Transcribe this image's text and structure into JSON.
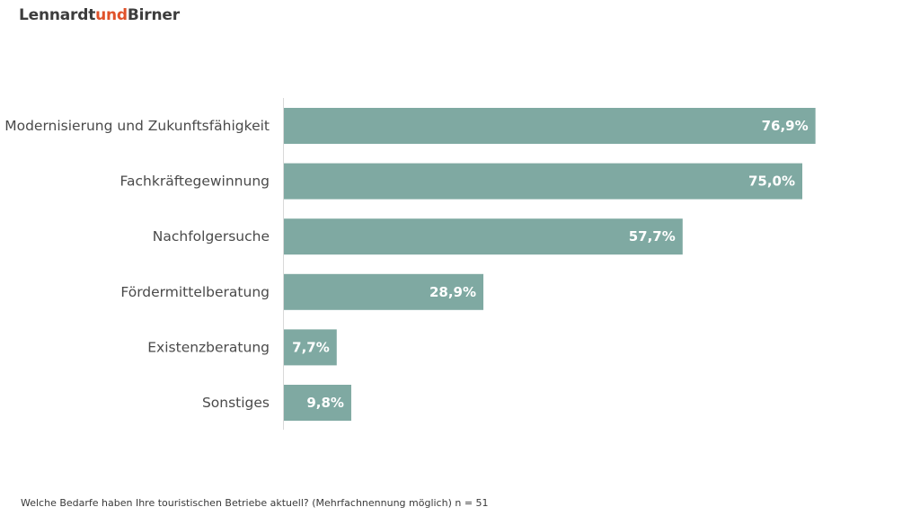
{
  "logo": {
    "part1": "Lennardt",
    "part2": "und",
    "part3": "Birner"
  },
  "footer": {
    "note": "Welche Bedarfe haben Ihre touristischen Betriebe aktuell? (Mehrfachnennung möglich) n = 51"
  },
  "colors": {
    "bar": "#7fa9a2",
    "bar_label": "#ffffff",
    "category_label": "#4a4a4a",
    "axis": "#d9d9d9",
    "logo_accent": "#e0522a"
  },
  "chart_data": {
    "type": "bar",
    "orientation": "horizontal",
    "categories": [
      "Modernisierung und Zukunftsfähigkeit",
      "Fachkräftegewinnung",
      "Nachfolgersuche",
      "Fördermittelberatung",
      "Existenzberatung",
      "Sonstiges"
    ],
    "values": [
      76.9,
      75.0,
      57.7,
      28.9,
      7.7,
      9.8
    ],
    "value_labels": [
      "76,9%",
      "75,0%",
      "57,7%",
      "28,9%",
      "7,7%",
      "9,8%"
    ],
    "xlim": [
      0,
      100
    ],
    "grid": false,
    "legend": "none"
  }
}
